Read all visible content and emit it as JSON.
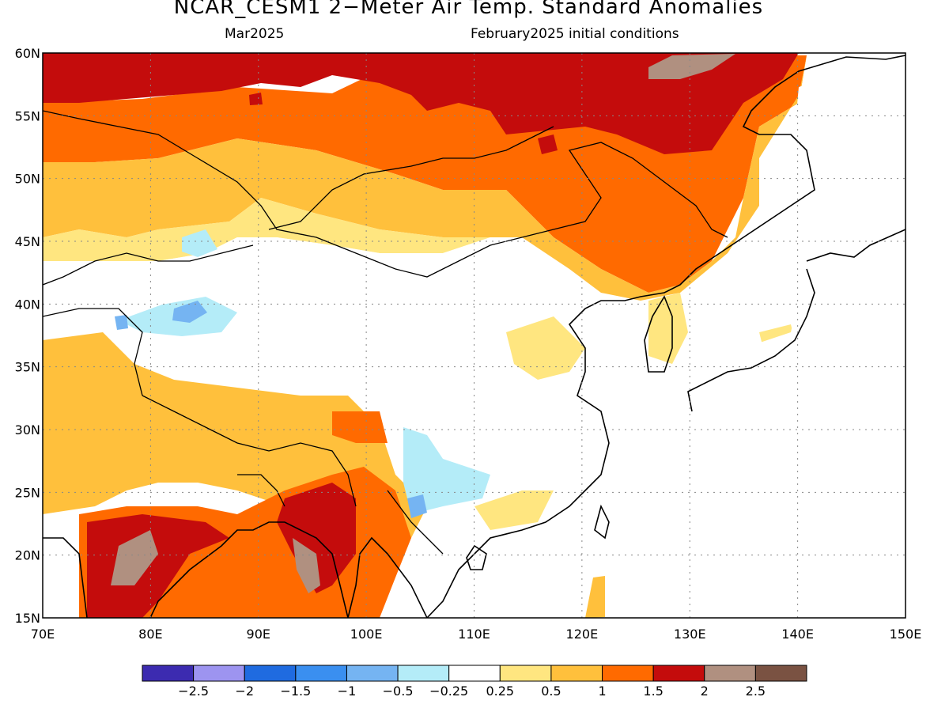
{
  "header": {
    "title": "NCAR_CESM1 2−Meter Air Temp. Standard Anomalies",
    "subtitle_left": "Mar2025",
    "subtitle_right": "February2025 initial conditions"
  },
  "map": {
    "extent": {
      "lon": [
        70,
        150
      ],
      "lat": [
        15,
        60
      ]
    },
    "lat_labels": [
      "60N",
      "55N",
      "50N",
      "45N",
      "40N",
      "35N",
      "30N",
      "25N",
      "20N",
      "15N"
    ],
    "lon_labels": [
      "70E",
      "80E",
      "90E",
      "100E",
      "110E",
      "120E",
      "130E",
      "140E",
      "150E"
    ],
    "gridlines": "dotted"
  },
  "colorbar": {
    "colors": [
      "#3c2bb0",
      "#9d94f0",
      "#1f6be0",
      "#3a8ff0",
      "#75b4f2",
      "#b4ecf8",
      "#ffffff",
      "#ffe680",
      "#ffc03c",
      "#ff6a00",
      "#c40c0c",
      "#b09080",
      "#7a5242"
    ],
    "labels": [
      "−2.5",
      "−2",
      "−1.5",
      "−1",
      "−0.5",
      "−0.25",
      "0.25",
      "0.5",
      "1",
      "1.5",
      "2",
      "2.5"
    ]
  }
}
